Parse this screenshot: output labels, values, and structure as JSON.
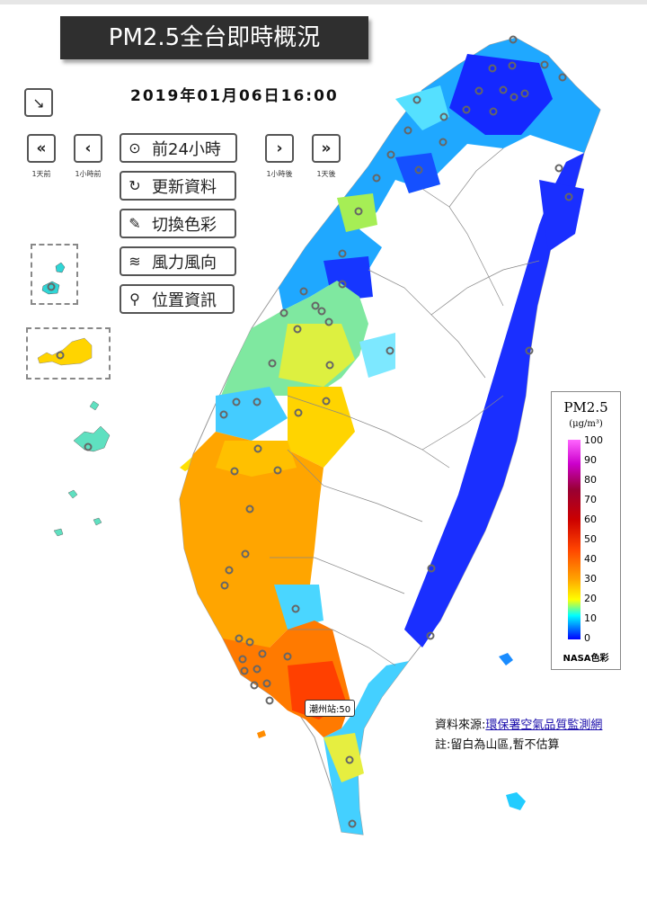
{
  "title": "PM2.5全台即時概況",
  "datetime": "2019年01月06日16:00",
  "nav": {
    "day_back": {
      "icon": "double-chevron-left-icon",
      "label": "1天前"
    },
    "hour_back": {
      "icon": "chevron-left-icon",
      "label": "1小時前"
    },
    "hour_fwd": {
      "icon": "chevron-right-icon",
      "label": "1小時後"
    },
    "day_fwd": {
      "icon": "double-chevron-right-icon",
      "label": "1天後"
    }
  },
  "buttons": [
    {
      "label": "前24小時",
      "icon": "play-circle-icon"
    },
    {
      "label": "更新資料",
      "icon": "refresh-icon"
    },
    {
      "label": "切換色彩",
      "icon": "paintbrush-icon"
    },
    {
      "label": "風力風向",
      "icon": "wind-icon"
    },
    {
      "label": "位置資訊",
      "icon": "location-pin-icon"
    }
  ],
  "legend": {
    "title": "PM2.5",
    "unit": "(μg/m³)",
    "ticks": [
      "100",
      "90",
      "80",
      "70",
      "60",
      "50",
      "40",
      "30",
      "20",
      "10",
      "0"
    ],
    "label": "NASA色彩"
  },
  "tooltip": "潮州站:50",
  "source": {
    "prefix": "資料來源:",
    "link": "環保署空氣品質監測網",
    "note": "註:留白為山區,暫不估算"
  },
  "colors": {
    "low": "#0033ff",
    "mid": "#00e5ff",
    "moderate": "#ffd000",
    "high": "#ff8a00",
    "very_high": "#ff3a00"
  }
}
